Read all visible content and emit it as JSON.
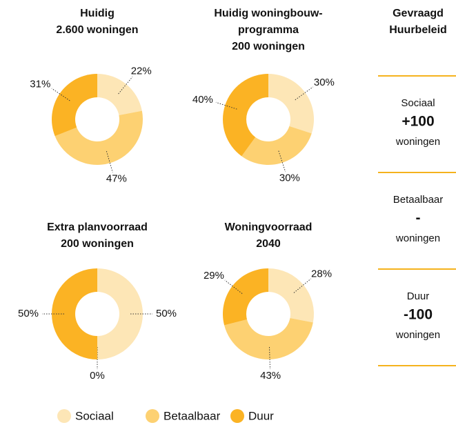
{
  "chart_data": [
    {
      "type": "pie",
      "title": [
        "Huidig",
        "2.600 woningen"
      ],
      "categories": [
        "Sociaal",
        "Betaalbaar",
        "Duur"
      ],
      "values": [
        22,
        47,
        31
      ],
      "value_labels": [
        "22%",
        "47%",
        "31%"
      ],
      "colors": [
        "#fde6b6",
        "#fdd172",
        "#fbb324"
      ]
    },
    {
      "type": "pie",
      "title": [
        "Huidig woningbouw-",
        "programma",
        "200 woningen"
      ],
      "categories": [
        "Sociaal",
        "Betaalbaar",
        "Duur"
      ],
      "values": [
        30,
        30,
        40
      ],
      "value_labels": [
        "30%",
        "30%",
        "40%"
      ],
      "colors": [
        "#fde6b6",
        "#fdd172",
        "#fbb324"
      ]
    },
    {
      "type": "pie",
      "title": [
        "Extra planvoorraad",
        "200 woningen"
      ],
      "categories": [
        "Sociaal",
        "Betaalbaar",
        "Duur"
      ],
      "values": [
        50,
        0,
        50
      ],
      "value_labels": [
        "50%",
        "0%",
        "50%"
      ],
      "colors": [
        "#fde6b6",
        "#fdd172",
        "#fbb324"
      ]
    },
    {
      "type": "pie",
      "title": [
        "Woningvoorraad",
        "2040"
      ],
      "categories": [
        "Sociaal",
        "Betaalbaar",
        "Duur"
      ],
      "values": [
        28,
        43,
        29
      ],
      "value_labels": [
        "28%",
        "43%",
        "29%"
      ],
      "colors": [
        "#fde6b6",
        "#fdd172",
        "#fbb324"
      ]
    }
  ],
  "panel": {
    "title": [
      "Gevraagd",
      "Huurbeleid"
    ],
    "items": [
      {
        "label": "Sociaal",
        "value": "+100",
        "unit": "woningen"
      },
      {
        "label": "Betaalbaar",
        "value": "-",
        "unit": "woningen"
      },
      {
        "label": "Duur",
        "value": "-100",
        "unit": "woningen"
      }
    ]
  }
}
